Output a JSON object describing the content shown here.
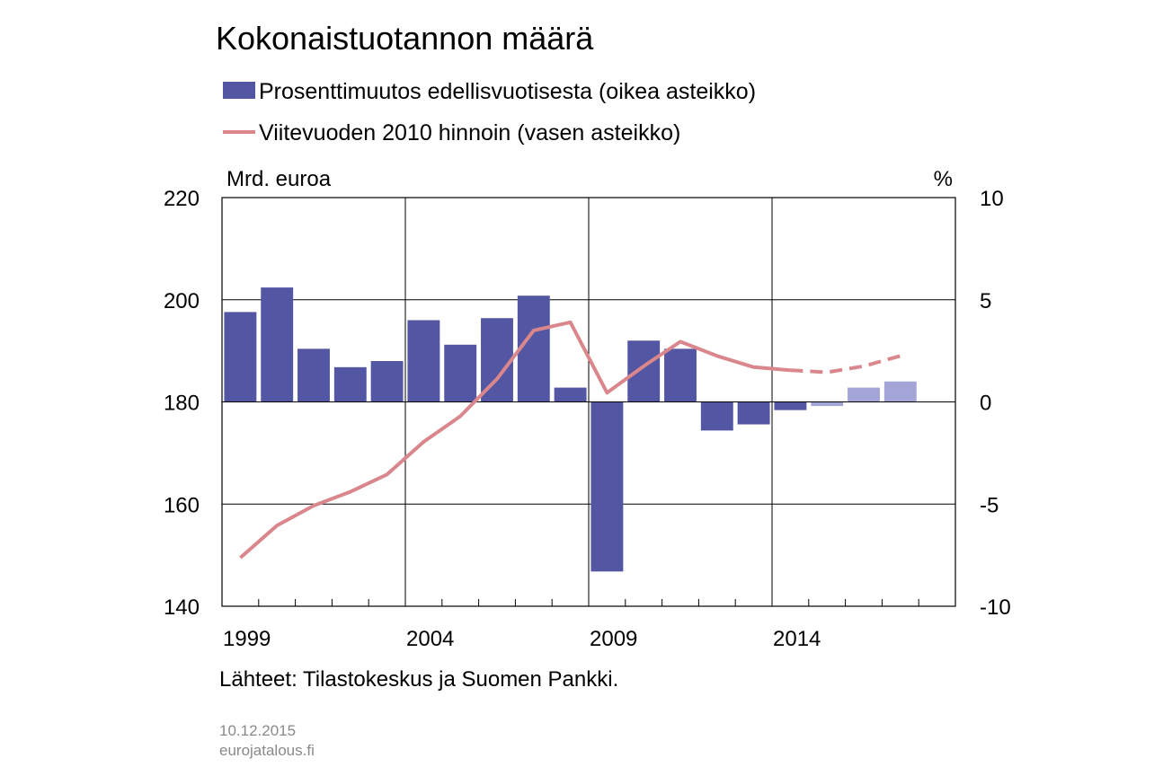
{
  "chart_data": {
    "type": "bar+line",
    "title": "Kokonaistuotannon määrä",
    "left_axis_label": "Mrd. euroa",
    "right_axis_label": "%",
    "left_ylim": [
      140,
      220
    ],
    "left_ticks": [
      140,
      160,
      180,
      200,
      220
    ],
    "right_ylim": [
      -10,
      10
    ],
    "right_ticks": [
      -10,
      -5,
      0,
      5,
      10
    ],
    "x_range": [
      1998.5,
      2018.5
    ],
    "x_ticks": [
      1999,
      2004,
      2009,
      2014
    ],
    "grid": true,
    "series": [
      {
        "name": "Prosenttimuutos edellisvuotisesta (oikea asteikko)",
        "kind": "bar",
        "axis": "right",
        "color": "#5356a3",
        "forecast_color": "#a3a5d6",
        "forecast_from": 2015,
        "x": [
          1999,
          2000,
          2001,
          2002,
          2003,
          2004,
          2005,
          2006,
          2007,
          2008,
          2009,
          2010,
          2011,
          2012,
          2013,
          2014,
          2015,
          2016,
          2017
        ],
        "values": [
          4.4,
          5.6,
          2.6,
          1.7,
          2.0,
          4.0,
          2.8,
          4.1,
          5.2,
          0.7,
          -8.3,
          3.0,
          2.6,
          -1.4,
          -1.1,
          -0.4,
          -0.2,
          0.7,
          1.0
        ]
      },
      {
        "name": "Viitevuoden 2010 hinnoin (vasen asteikko)",
        "kind": "line",
        "axis": "left",
        "color": "#d9878c",
        "forecast_from": 2014,
        "x": [
          1999,
          2000,
          2001,
          2002,
          2003,
          2004,
          2005,
          2006,
          2007,
          2008,
          2009,
          2010,
          2011,
          2012,
          2013,
          2014,
          2015,
          2016,
          2017
        ],
        "values": [
          149.5,
          155.8,
          159.7,
          162.4,
          165.8,
          172.2,
          177.2,
          184.5,
          194.0,
          195.6,
          181.8,
          187.0,
          191.8,
          189.0,
          186.8,
          186.2,
          185.8,
          187.0,
          189.0
        ]
      }
    ]
  },
  "footer": {
    "source": "Lähteet: Tilastokeskus ja Suomen Pankki.",
    "date": "10.12.2015",
    "site": "eurojatalous.fi"
  }
}
